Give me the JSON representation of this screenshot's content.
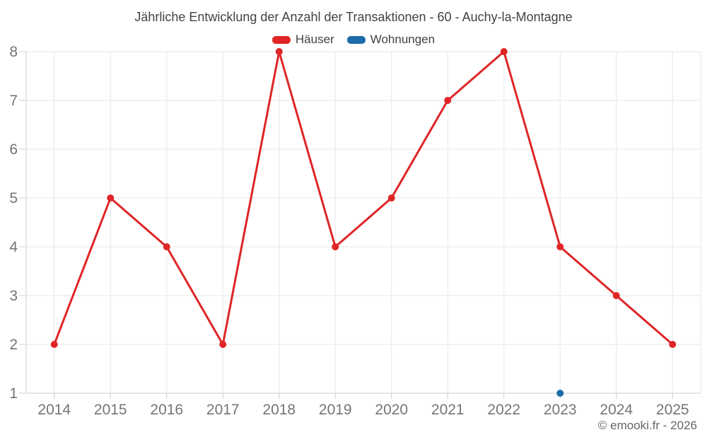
{
  "title": "Jährliche Entwicklung der Anzahl der Transaktionen - 60 - Auchy-la-Montagne",
  "legend": {
    "items": [
      {
        "label": "Häuser",
        "color": "#df2527"
      },
      {
        "label": "Wohnungen",
        "color": "#1b6ca9"
      }
    ]
  },
  "footer": {
    "copyright": "© emooki.fr - 2026"
  },
  "chart_data": {
    "type": "line",
    "title": "Jährliche Entwicklung der Anzahl der Transaktionen - 60 - Auchy-la-Montagne",
    "categories": [
      "2014",
      "2015",
      "2016",
      "2017",
      "2018",
      "2019",
      "2020",
      "2021",
      "2022",
      "2023",
      "2024",
      "2025"
    ],
    "series": [
      {
        "name": "Häuser",
        "color": "#df2527",
        "values": [
          2,
          5,
          4,
          2,
          8,
          4,
          5,
          7,
          8,
          4,
          3,
          2
        ]
      },
      {
        "name": "Wohnungen",
        "color": "#1b6ca9",
        "values": [
          null,
          null,
          null,
          null,
          null,
          null,
          null,
          null,
          null,
          1,
          null,
          null
        ]
      }
    ],
    "ylim": [
      1,
      8
    ],
    "yticks": [
      1,
      2,
      3,
      4,
      5,
      6,
      7,
      8
    ],
    "grid": true,
    "legend_position": "top",
    "xlabel": "",
    "ylabel": "",
    "axis_label_color": "#757575",
    "gridline_color": "#e7e7e7",
    "axis_line_color": "#cccccc"
  }
}
